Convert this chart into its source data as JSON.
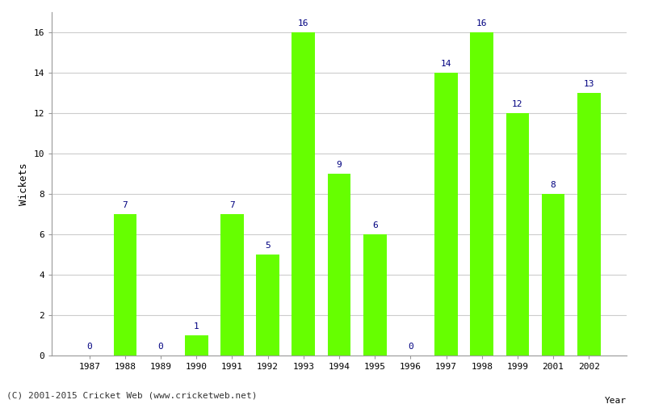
{
  "years": [
    "1987",
    "1988",
    "1989",
    "1990",
    "1991",
    "1992",
    "1993",
    "1994",
    "1995",
    "1996",
    "1997",
    "1998",
    "1999",
    "2001",
    "2002"
  ],
  "wickets": [
    0,
    7,
    0,
    1,
    7,
    5,
    16,
    9,
    6,
    0,
    14,
    16,
    12,
    8,
    13
  ],
  "bar_color": "#66ff00",
  "label_color": "#000080",
  "label_fontsize": 8,
  "tick_fontsize": 8,
  "ylabel": "Wickets",
  "ylim": [
    0,
    17
  ],
  "yticks": [
    0,
    2,
    4,
    6,
    8,
    10,
    12,
    14,
    16
  ],
  "background_color": "#ffffff",
  "grid_color": "#cccccc",
  "footer_text": "(C) 2001-2015 Cricket Web (www.cricketweb.net)",
  "footer_fontsize": 8,
  "footer_color": "#333333"
}
